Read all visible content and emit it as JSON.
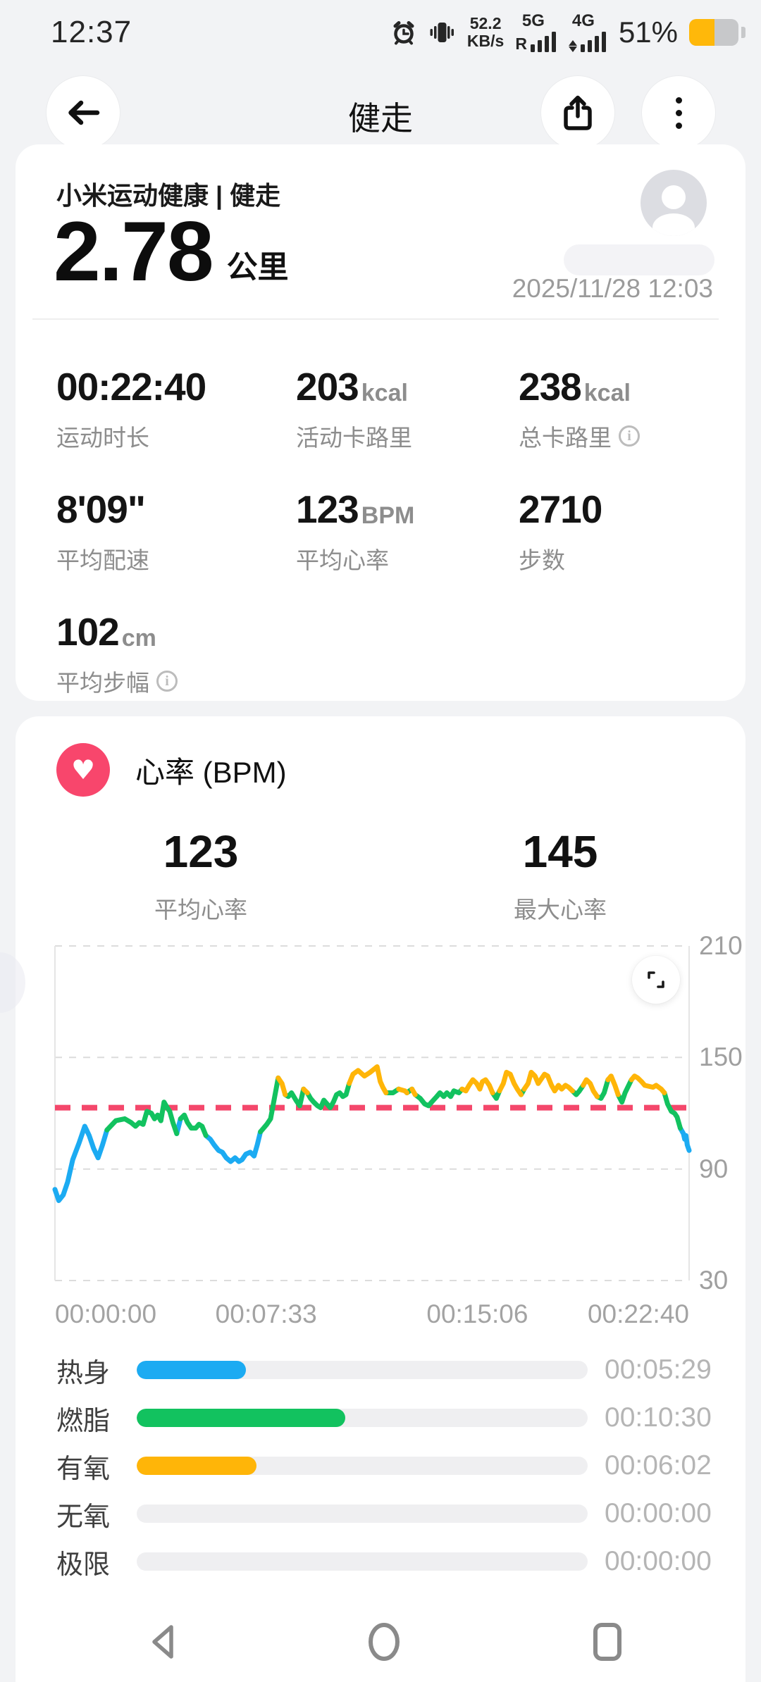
{
  "status_bar": {
    "time": "12:37",
    "net_speed_value": "52.2",
    "net_speed_unit": "KB/s",
    "sim1_tag": "R",
    "sim1_net": "5G",
    "sim2_net": "4G",
    "battery_percent": "51%",
    "battery_fill_percent": 51,
    "battery_color": "#ffb80a"
  },
  "header": {
    "title": "健走"
  },
  "summary": {
    "app_label": "小米运动健康 | 健走",
    "distance_value": "2.78",
    "distance_unit": "公里",
    "datetime": "2025/11/28 12:03"
  },
  "stats": {
    "items": [
      {
        "value": "00:22:40",
        "unit": "",
        "label": "运动时长"
      },
      {
        "value": "203",
        "unit": "kcal",
        "label": "活动卡路里"
      },
      {
        "value": "238",
        "unit": "kcal",
        "label": "总卡路里"
      },
      {
        "value": "8'09\"",
        "unit": "",
        "label": "平均配速"
      },
      {
        "value": "123",
        "unit": "BPM",
        "label": "平均心率"
      },
      {
        "value": "2710",
        "unit": "",
        "label": "步数"
      },
      {
        "value": "102",
        "unit": "cm",
        "label": "平均步幅"
      }
    ]
  },
  "heart_rate": {
    "title": "心率 (BPM)",
    "avg_value": "123",
    "avg_label": "平均心率",
    "max_value": "145",
    "max_label": "最大心率",
    "accent_color": "#f8466c"
  },
  "chart_data": {
    "type": "line",
    "title": "心率 (BPM)",
    "ylabel": "BPM",
    "ylim": [
      30,
      210
    ],
    "y_ticks": [
      210,
      150,
      90,
      30
    ],
    "x_axis_labels": [
      "00:00:00",
      "00:07:33",
      "00:15:06",
      "00:22:40"
    ],
    "duration_seconds": 1360,
    "avg_line_value": 123,
    "grid": "dashed",
    "legend_position": "none",
    "colors": {
      "warmup": "#1cabf2",
      "fatburn": "#12c25f",
      "aerobic": "#ffb508",
      "avg_line": "#f4476b",
      "grid": "#dcdcdc",
      "axis": "#e5e5e5"
    },
    "zone_key": {
      "0": "warmup-blue",
      "1": "fatburn-green",
      "2": "aerobic-yellow"
    },
    "series": [
      {
        "name": "心率",
        "points": [
          [
            0,
            79,
            0
          ],
          [
            0.006,
            73,
            0
          ],
          [
            0.013,
            76,
            0
          ],
          [
            0.02,
            83,
            0
          ],
          [
            0.028,
            95,
            0
          ],
          [
            0.038,
            104,
            0
          ],
          [
            0.047,
            113,
            0
          ],
          [
            0.054,
            108,
            0
          ],
          [
            0.061,
            101,
            0
          ],
          [
            0.068,
            96,
            0
          ],
          [
            0.075,
            103,
            0
          ],
          [
            0.082,
            111,
            1
          ],
          [
            0.096,
            116,
            1
          ],
          [
            0.11,
            117,
            1
          ],
          [
            0.12,
            115,
            1
          ],
          [
            0.127,
            113,
            1
          ],
          [
            0.133,
            115,
            1
          ],
          [
            0.139,
            114,
            1
          ],
          [
            0.145,
            121,
            1
          ],
          [
            0.152,
            120,
            1
          ],
          [
            0.157,
            117,
            1
          ],
          [
            0.162,
            119,
            1
          ],
          [
            0.167,
            116,
            1
          ],
          [
            0.172,
            126,
            1
          ],
          [
            0.177,
            123,
            1
          ],
          [
            0.181,
            121,
            1
          ],
          [
            0.186,
            115,
            1
          ],
          [
            0.192,
            109,
            0
          ],
          [
            0.198,
            117,
            1
          ],
          [
            0.204,
            119,
            1
          ],
          [
            0.209,
            115,
            1
          ],
          [
            0.215,
            112,
            1
          ],
          [
            0.222,
            112,
            1
          ],
          [
            0.227,
            114,
            1
          ],
          [
            0.232,
            113,
            1
          ],
          [
            0.238,
            108,
            0
          ],
          [
            0.245,
            106,
            0
          ],
          [
            0.251,
            103,
            0
          ],
          [
            0.258,
            100,
            0
          ],
          [
            0.264,
            99,
            0
          ],
          [
            0.27,
            96,
            0
          ],
          [
            0.277,
            94,
            0
          ],
          [
            0.284,
            96,
            0
          ],
          [
            0.29,
            94,
            0
          ],
          [
            0.295,
            95,
            0
          ],
          [
            0.301,
            98,
            0
          ],
          [
            0.308,
            99,
            0
          ],
          [
            0.314,
            97,
            0
          ],
          [
            0.319,
            103,
            0
          ],
          [
            0.324,
            110,
            1
          ],
          [
            0.329,
            112,
            1
          ],
          [
            0.334,
            114,
            1
          ],
          [
            0.34,
            117,
            1
          ],
          [
            0.346,
            128,
            1
          ],
          [
            0.352,
            139,
            2
          ],
          [
            0.358,
            136,
            2
          ],
          [
            0.363,
            130,
            1
          ],
          [
            0.368,
            129,
            1
          ],
          [
            0.373,
            131,
            1
          ],
          [
            0.38,
            127,
            1
          ],
          [
            0.386,
            124,
            1
          ],
          [
            0.392,
            133,
            2
          ],
          [
            0.398,
            131,
            1
          ],
          [
            0.403,
            128,
            1
          ],
          [
            0.408,
            126,
            1
          ],
          [
            0.414,
            124,
            1
          ],
          [
            0.419,
            123,
            1
          ],
          [
            0.424,
            127,
            1
          ],
          [
            0.429,
            125,
            1
          ],
          [
            0.434,
            123,
            1
          ],
          [
            0.439,
            126,
            1
          ],
          [
            0.444,
            130,
            1
          ],
          [
            0.449,
            131,
            1
          ],
          [
            0.454,
            129,
            1
          ],
          [
            0.459,
            130,
            1
          ],
          [
            0.464,
            136,
            2
          ],
          [
            0.47,
            141,
            2
          ],
          [
            0.478,
            143,
            2
          ],
          [
            0.488,
            140,
            2
          ],
          [
            0.497,
            142,
            2
          ],
          [
            0.508,
            145,
            2
          ],
          [
            0.513,
            137,
            2
          ],
          [
            0.517,
            134,
            2
          ],
          [
            0.522,
            131,
            1
          ],
          [
            0.533,
            131,
            1
          ],
          [
            0.542,
            133,
            2
          ],
          [
            0.552,
            132,
            2
          ],
          [
            0.555,
            131,
            1
          ],
          [
            0.563,
            133,
            2
          ],
          [
            0.568,
            130,
            1
          ],
          [
            0.576,
            128,
            1
          ],
          [
            0.583,
            125,
            1
          ],
          [
            0.589,
            124,
            1
          ],
          [
            0.594,
            126,
            1
          ],
          [
            0.602,
            129,
            1
          ],
          [
            0.607,
            131,
            1
          ],
          [
            0.613,
            129,
            1
          ],
          [
            0.618,
            131,
            1
          ],
          [
            0.624,
            129,
            1
          ],
          [
            0.629,
            132,
            1
          ],
          [
            0.637,
            131,
            1
          ],
          [
            0.642,
            133,
            2
          ],
          [
            0.648,
            132,
            2
          ],
          [
            0.653,
            135,
            2
          ],
          [
            0.659,
            138,
            2
          ],
          [
            0.665,
            136,
            2
          ],
          [
            0.67,
            133,
            2
          ],
          [
            0.674,
            137,
            2
          ],
          [
            0.679,
            138,
            2
          ],
          [
            0.685,
            135,
            2
          ],
          [
            0.69,
            131,
            1
          ],
          [
            0.696,
            128,
            1
          ],
          [
            0.701,
            132,
            2
          ],
          [
            0.707,
            136,
            2
          ],
          [
            0.712,
            142,
            2
          ],
          [
            0.718,
            141,
            2
          ],
          [
            0.724,
            136,
            2
          ],
          [
            0.729,
            133,
            2
          ],
          [
            0.735,
            130,
            1
          ],
          [
            0.74,
            133,
            2
          ],
          [
            0.746,
            136,
            2
          ],
          [
            0.751,
            142,
            2
          ],
          [
            0.757,
            140,
            2
          ],
          [
            0.762,
            136,
            2
          ],
          [
            0.766,
            138,
            2
          ],
          [
            0.772,
            141,
            2
          ],
          [
            0.777,
            140,
            2
          ],
          [
            0.783,
            135,
            2
          ],
          [
            0.788,
            132,
            2
          ],
          [
            0.794,
            135,
            2
          ],
          [
            0.799,
            133,
            2
          ],
          [
            0.805,
            135,
            2
          ],
          [
            0.81,
            134,
            2
          ],
          [
            0.816,
            132,
            1
          ],
          [
            0.822,
            130,
            1
          ],
          [
            0.827,
            132,
            1
          ],
          [
            0.833,
            135,
            2
          ],
          [
            0.838,
            138,
            2
          ],
          [
            0.844,
            136,
            2
          ],
          [
            0.849,
            132,
            2
          ],
          [
            0.855,
            129,
            1
          ],
          [
            0.861,
            128,
            1
          ],
          [
            0.866,
            131,
            1
          ],
          [
            0.872,
            138,
            2
          ],
          [
            0.877,
            140,
            2
          ],
          [
            0.883,
            135,
            2
          ],
          [
            0.888,
            130,
            1
          ],
          [
            0.894,
            126,
            1
          ],
          [
            0.899,
            131,
            1
          ],
          [
            0.909,
            138,
            2
          ],
          [
            0.914,
            140,
            2
          ],
          [
            0.919,
            139,
            2
          ],
          [
            0.925,
            137,
            2
          ],
          [
            0.93,
            135,
            2
          ],
          [
            0.943,
            134,
            2
          ],
          [
            0.948,
            135,
            2
          ],
          [
            0.956,
            133,
            2
          ],
          [
            0.961,
            131,
            1
          ],
          [
            0.966,
            125,
            1
          ],
          [
            0.972,
            121,
            1
          ],
          [
            0.977,
            120,
            1
          ],
          [
            0.981,
            118,
            1
          ],
          [
            0.986,
            112,
            0
          ],
          [
            0.991,
            109,
            0
          ],
          [
            0.993,
            106,
            0
          ],
          [
            0.995,
            108,
            0
          ],
          [
            0.997,
            103,
            0
          ],
          [
            1,
            100,
            0
          ]
        ]
      }
    ]
  },
  "zones": {
    "items": [
      {
        "label": "热身",
        "time": "00:05:29",
        "percent": 24.2,
        "color": "#1cabf2"
      },
      {
        "label": "燃脂",
        "time": "00:10:30",
        "percent": 46.3,
        "color": "#12c25f"
      },
      {
        "label": "有氧",
        "time": "00:06:02",
        "percent": 26.6,
        "color": "#ffb508"
      },
      {
        "label": "无氧",
        "time": "00:00:00",
        "percent": 0,
        "color": "#ff7043"
      },
      {
        "label": "极限",
        "time": "00:00:00",
        "percent": 0,
        "color": "#f4436b"
      }
    ]
  }
}
